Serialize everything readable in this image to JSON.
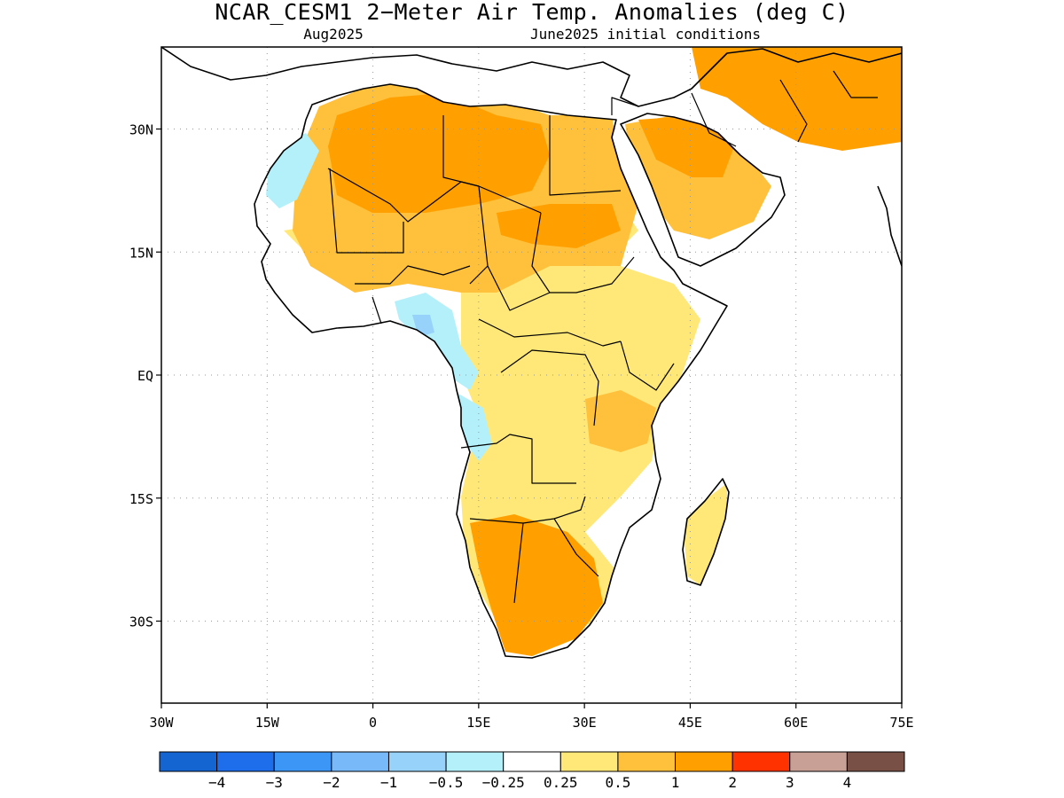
{
  "title": "NCAR_CESM1 2−Meter Air Temp. Anomalies (deg C)",
  "valid_month": "Aug2025",
  "initial_conditions": "June2025 initial conditions",
  "axes": {
    "lon_ticks": [
      {
        "lon": -30,
        "label": "30W"
      },
      {
        "lon": -15,
        "label": "15W"
      },
      {
        "lon": 0,
        "label": "0"
      },
      {
        "lon": 15,
        "label": "15E"
      },
      {
        "lon": 30,
        "label": "30E"
      },
      {
        "lon": 45,
        "label": "45E"
      },
      {
        "lon": 60,
        "label": "60E"
      },
      {
        "lon": 75,
        "label": "75E"
      }
    ],
    "lat_ticks": [
      {
        "lat": 30,
        "label": "30N"
      },
      {
        "lat": 15,
        "label": "15N"
      },
      {
        "lat": 0,
        "label": "EQ"
      },
      {
        "lat": -15,
        "label": "15S"
      },
      {
        "lat": -30,
        "label": "30S"
      }
    ],
    "lon_range": [
      -30,
      75
    ],
    "lat_range": [
      -40,
      40
    ]
  },
  "colorbar": {
    "colors": [
      "#1464d2",
      "#1e6eeb",
      "#3c96f5",
      "#78b9fa",
      "#96d2fa",
      "#b4f0fa",
      "#ffffff",
      "#ffe878",
      "#ffc03c",
      "#ffa000",
      "#ff3200",
      "#c8a096",
      "#785046"
    ],
    "labels": [
      "−4",
      "−3",
      "−2",
      "−1",
      "−0.5",
      "−0.25",
      "0.25",
      "0.5",
      "1",
      "2",
      "3",
      "4"
    ]
  }
}
